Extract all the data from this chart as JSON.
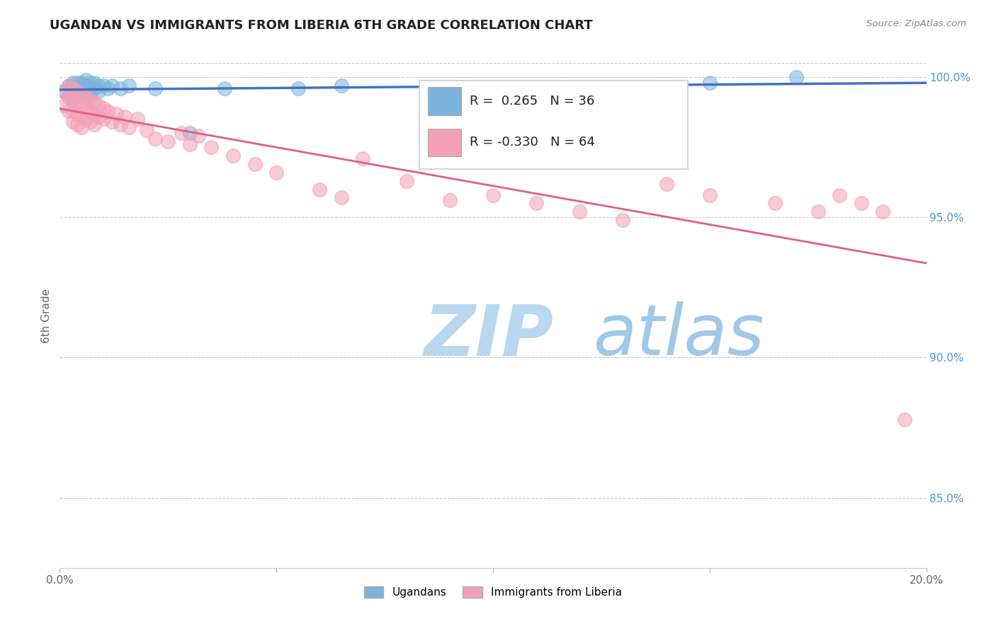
{
  "title": "UGANDAN VS IMMIGRANTS FROM LIBERIA 6TH GRADE CORRELATION CHART",
  "source_text": "Source: ZipAtlas.com",
  "ylabel": "6th Grade",
  "xlim": [
    0.0,
    0.2
  ],
  "ylim": [
    0.825,
    1.005
  ],
  "xticks": [
    0.0,
    0.05,
    0.1,
    0.15,
    0.2
  ],
  "xtick_labels": [
    "0.0%",
    "",
    "",
    "",
    "20.0%"
  ],
  "ytick_labels_right": [
    "85.0%",
    "90.0%",
    "95.0%",
    "100.0%"
  ],
  "yticks_right": [
    0.85,
    0.9,
    0.95,
    1.0
  ],
  "legend_ugandan": "Ugandans",
  "legend_liberia": "Immigrants from Liberia",
  "R_ugandan": 0.265,
  "N_ugandan": 36,
  "R_liberia": -0.33,
  "N_liberia": 64,
  "color_ugandan": "#7ab4dc",
  "color_liberia": "#f4a0b5",
  "line_color_ugandan": "#4472c4",
  "line_color_liberia": "#e06080",
  "background_color": "#ffffff",
  "watermark_zip": "ZIP",
  "watermark_atlas": "atlas",
  "watermark_color_zip": "#b8d8f0",
  "watermark_color_atlas": "#a0c8e8",
  "ugandan_x": [
    0.001,
    0.002,
    0.002,
    0.003,
    0.003,
    0.003,
    0.004,
    0.004,
    0.004,
    0.005,
    0.005,
    0.005,
    0.006,
    0.006,
    0.006,
    0.007,
    0.007,
    0.007,
    0.008,
    0.008,
    0.009,
    0.009,
    0.01,
    0.011,
    0.012,
    0.014,
    0.016,
    0.022,
    0.03,
    0.038,
    0.055,
    0.065,
    0.09,
    0.13,
    0.15,
    0.17
  ],
  "ugandan_y": [
    0.995,
    0.997,
    0.993,
    0.998,
    0.996,
    0.992,
    0.998,
    0.996,
    0.993,
    0.998,
    0.997,
    0.995,
    0.999,
    0.997,
    0.994,
    0.998,
    0.996,
    0.994,
    0.998,
    0.996,
    0.997,
    0.995,
    0.997,
    0.996,
    0.997,
    0.996,
    0.997,
    0.996,
    0.98,
    0.996,
    0.996,
    0.997,
    0.996,
    0.996,
    0.998,
    1.0
  ],
  "liberia_x": [
    0.001,
    0.001,
    0.002,
    0.002,
    0.002,
    0.003,
    0.003,
    0.003,
    0.003,
    0.004,
    0.004,
    0.004,
    0.004,
    0.005,
    0.005,
    0.005,
    0.005,
    0.006,
    0.006,
    0.006,
    0.007,
    0.007,
    0.007,
    0.008,
    0.008,
    0.008,
    0.009,
    0.009,
    0.01,
    0.01,
    0.011,
    0.012,
    0.013,
    0.014,
    0.015,
    0.016,
    0.018,
    0.02,
    0.022,
    0.025,
    0.028,
    0.03,
    0.032,
    0.035,
    0.04,
    0.045,
    0.05,
    0.06,
    0.065,
    0.07,
    0.08,
    0.09,
    0.1,
    0.11,
    0.12,
    0.13,
    0.14,
    0.15,
    0.165,
    0.175,
    0.18,
    0.185,
    0.19,
    0.195
  ],
  "liberia_y": [
    0.995,
    0.99,
    0.997,
    0.993,
    0.988,
    0.996,
    0.992,
    0.988,
    0.984,
    0.995,
    0.991,
    0.987,
    0.983,
    0.994,
    0.99,
    0.986,
    0.982,
    0.993,
    0.989,
    0.985,
    0.992,
    0.988,
    0.984,
    0.991,
    0.987,
    0.983,
    0.99,
    0.986,
    0.989,
    0.985,
    0.988,
    0.984,
    0.987,
    0.983,
    0.986,
    0.982,
    0.985,
    0.981,
    0.978,
    0.977,
    0.98,
    0.976,
    0.979,
    0.975,
    0.972,
    0.969,
    0.966,
    0.96,
    0.957,
    0.971,
    0.963,
    0.956,
    0.958,
    0.955,
    0.952,
    0.949,
    0.962,
    0.958,
    0.955,
    0.952,
    0.958,
    0.955,
    0.952,
    0.878
  ]
}
